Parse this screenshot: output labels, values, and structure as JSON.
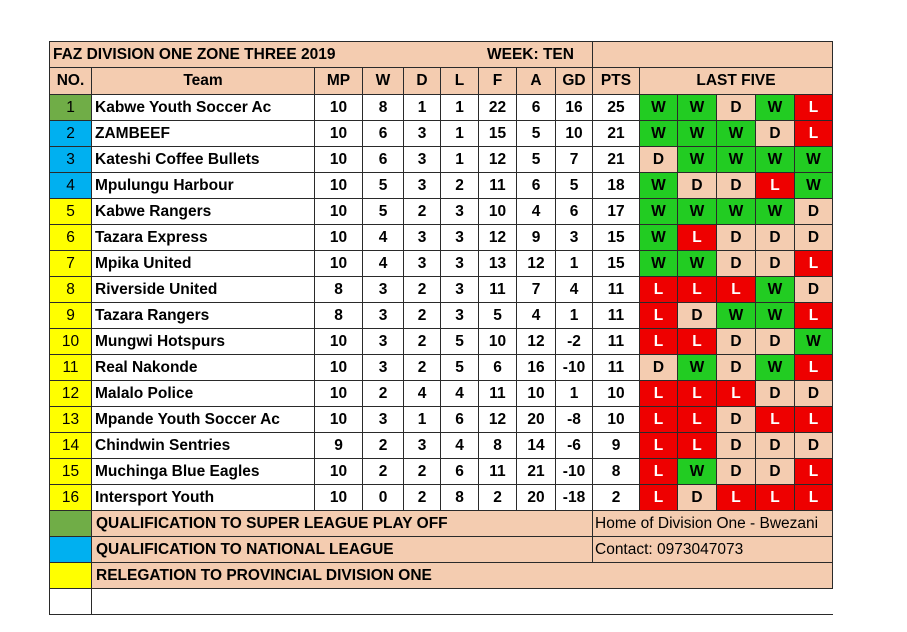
{
  "title": "FAZ DIVISION ONE ZONE THREE 2019",
  "week": "WEEK: TEN",
  "headers": {
    "no": "NO.",
    "team": "Team",
    "mp": "MP",
    "w": "W",
    "d": "D",
    "l": "L",
    "f": "F",
    "a": "A",
    "gd": "GD",
    "pts": "PTS",
    "last_five": "LAST FIVE"
  },
  "rows": [
    {
      "no": "1",
      "zone": "green",
      "team": "Kabwe Youth Soccer Ac",
      "mp": "10",
      "w": "8",
      "d": "1",
      "l": "1",
      "f": "22",
      "a": "6",
      "gd": "16",
      "pts": "25",
      "last_five": [
        "W",
        "W",
        "D",
        "W",
        "L"
      ]
    },
    {
      "no": "2",
      "zone": "blue",
      "team": "ZAMBEEF",
      "mp": "10",
      "w": "6",
      "d": "3",
      "l": "1",
      "f": "15",
      "a": "5",
      "gd": "10",
      "pts": "21",
      "last_five": [
        "W",
        "W",
        "W",
        "D",
        "L"
      ]
    },
    {
      "no": "3",
      "zone": "blue",
      "team": "Kateshi Coffee Bullets",
      "mp": "10",
      "w": "6",
      "d": "3",
      "l": "1",
      "f": "12",
      "a": "5",
      "gd": "7",
      "pts": "21",
      "last_five": [
        "D",
        "W",
        "W",
        "W",
        "W"
      ]
    },
    {
      "no": "4",
      "zone": "blue",
      "team": "Mpulungu Harbour",
      "mp": "10",
      "w": "5",
      "d": "3",
      "l": "2",
      "f": "11",
      "a": "6",
      "gd": "5",
      "pts": "18",
      "last_five": [
        "W",
        "D",
        "D",
        "L",
        "W"
      ]
    },
    {
      "no": "5",
      "zone": "yellow",
      "team": "Kabwe Rangers",
      "mp": "10",
      "w": "5",
      "d": "2",
      "l": "3",
      "f": "10",
      "a": "4",
      "gd": "6",
      "pts": "17",
      "last_five": [
        "W",
        "W",
        "W",
        "W",
        "D"
      ]
    },
    {
      "no": "6",
      "zone": "yellow",
      "team": "Tazara Express",
      "mp": "10",
      "w": "4",
      "d": "3",
      "l": "3",
      "f": "12",
      "a": "9",
      "gd": "3",
      "pts": "15",
      "last_five": [
        "W",
        "L",
        "D",
        "D",
        "D"
      ]
    },
    {
      "no": "7",
      "zone": "yellow",
      "team": "Mpika United",
      "mp": "10",
      "w": "4",
      "d": "3",
      "l": "3",
      "f": "13",
      "a": "12",
      "gd": "1",
      "pts": "15",
      "last_five": [
        "W",
        "W",
        "D",
        "D",
        "L"
      ]
    },
    {
      "no": "8",
      "zone": "yellow",
      "team": "Riverside United",
      "mp": "8",
      "w": "3",
      "d": "2",
      "l": "3",
      "f": "11",
      "a": "7",
      "gd": "4",
      "pts": "11",
      "last_five": [
        "L",
        "L",
        "L",
        "W",
        "D"
      ]
    },
    {
      "no": "9",
      "zone": "yellow",
      "team": "Tazara Rangers",
      "mp": "8",
      "w": "3",
      "d": "2",
      "l": "3",
      "f": "5",
      "a": "4",
      "gd": "1",
      "pts": "11",
      "last_five": [
        "L",
        "D",
        "W",
        "W",
        "L"
      ]
    },
    {
      "no": "10",
      "zone": "yellow",
      "team": "Mungwi Hotspurs",
      "mp": "10",
      "w": "3",
      "d": "2",
      "l": "5",
      "f": "10",
      "a": "12",
      "gd": "-2",
      "pts": "11",
      "last_five": [
        "L",
        "L",
        "D",
        "D",
        "W"
      ]
    },
    {
      "no": "11",
      "zone": "yellow",
      "team": "Real Nakonde",
      "mp": "10",
      "w": "3",
      "d": "2",
      "l": "5",
      "f": "6",
      "a": "16",
      "gd": "-10",
      "pts": "11",
      "last_five": [
        "D",
        "W",
        "D",
        "W",
        "L"
      ]
    },
    {
      "no": "12",
      "zone": "yellow",
      "team": "Malalo Police",
      "mp": "10",
      "w": "2",
      "d": "4",
      "l": "4",
      "f": "11",
      "a": "10",
      "gd": "1",
      "pts": "10",
      "last_five": [
        "L",
        "L",
        "L",
        "D",
        "D"
      ]
    },
    {
      "no": "13",
      "zone": "yellow",
      "team": "Mpande Youth Soccer Ac",
      "mp": "10",
      "w": "3",
      "d": "1",
      "l": "6",
      "f": "12",
      "a": "20",
      "gd": "-8",
      "pts": "10",
      "last_five": [
        "L",
        "L",
        "D",
        "L",
        "L"
      ]
    },
    {
      "no": "14",
      "zone": "yellow",
      "team": "Chindwin Sentries",
      "mp": "9",
      "w": "2",
      "d": "3",
      "l": "4",
      "f": "8",
      "a": "14",
      "gd": "-6",
      "pts": "9",
      "last_five": [
        "L",
        "L",
        "D",
        "D",
        "D"
      ]
    },
    {
      "no": "15",
      "zone": "yellow",
      "team": "Muchinga Blue Eagles",
      "mp": "10",
      "w": "2",
      "d": "2",
      "l": "6",
      "f": "11",
      "a": "21",
      "gd": "-10",
      "pts": "8",
      "last_five": [
        "L",
        "W",
        "D",
        "D",
        "L"
      ]
    },
    {
      "no": "16",
      "zone": "yellow",
      "team": "Intersport Youth",
      "mp": "10",
      "w": "0",
      "d": "2",
      "l": "8",
      "f": "2",
      "a": "20",
      "gd": "-18",
      "pts": "2",
      "last_five": [
        "L",
        "D",
        "L",
        "L",
        "L"
      ]
    }
  ],
  "legend": [
    {
      "color": "green",
      "text": "QUALIFICATION TO SUPER LEAGUE PLAY OFF"
    },
    {
      "color": "blue",
      "text": "QUALIFICATION TO NATIONAL LEAGUE"
    },
    {
      "color": "yellow",
      "text": "RELEGATION  TO PROVINCIAL DIVISION ONE"
    }
  ],
  "info": {
    "home": "Home of Division One - Bwezani",
    "contact": "Contact: 0973047073"
  },
  "colors": {
    "win": "#22cc22",
    "draw": "#f4ccb0",
    "loss": "#ee0000",
    "zone_green": "#70ad47",
    "zone_blue": "#00b0f0",
    "zone_yellow": "#ffff00",
    "background": "#f4ccb0"
  }
}
